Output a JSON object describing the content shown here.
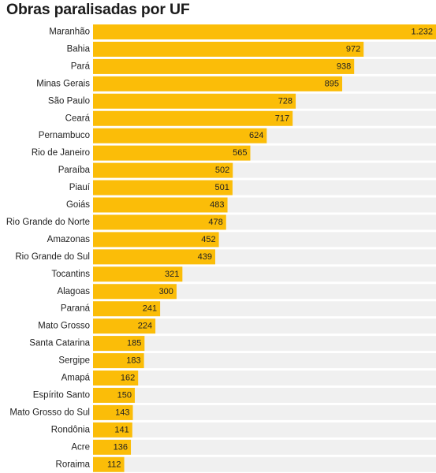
{
  "chart_data": {
    "type": "bar",
    "orientation": "horizontal",
    "title": "Obras paralisadas por UF",
    "xlabel": "",
    "ylabel": "",
    "xlim": [
      0,
      1232
    ],
    "grid": false,
    "legend": "none",
    "colors": {
      "bar": "#fbbd08",
      "track": "#f0f0f0",
      "text": "#222222"
    },
    "categories": [
      "Maranhão",
      "Bahia",
      "Pará",
      "Minas Gerais",
      "São Paulo",
      "Ceará",
      "Pernambuco",
      "Rio de Janeiro",
      "Paraíba",
      "Piauí",
      "Goiás",
      "Rio Grande do Norte",
      "Amazonas",
      "Rio Grande do Sul",
      "Tocantins",
      "Alagoas",
      "Paraná",
      "Mato Grosso",
      "Santa Catarina",
      "Sergipe",
      "Amapá",
      "Espírito Santo",
      "Mato Grosso do Sul",
      "Rondônia",
      "Acre",
      "Roraima"
    ],
    "values": [
      1232,
      972,
      938,
      895,
      728,
      717,
      624,
      565,
      502,
      501,
      483,
      478,
      452,
      439,
      321,
      300,
      241,
      224,
      185,
      183,
      162,
      150,
      143,
      141,
      136,
      112
    ],
    "value_labels": [
      "1.232",
      "972",
      "938",
      "895",
      "728",
      "717",
      "624",
      "565",
      "502",
      "501",
      "483",
      "478",
      "452",
      "439",
      "321",
      "300",
      "241",
      "224",
      "185",
      "183",
      "162",
      "150",
      "143",
      "141",
      "136",
      "112"
    ]
  }
}
